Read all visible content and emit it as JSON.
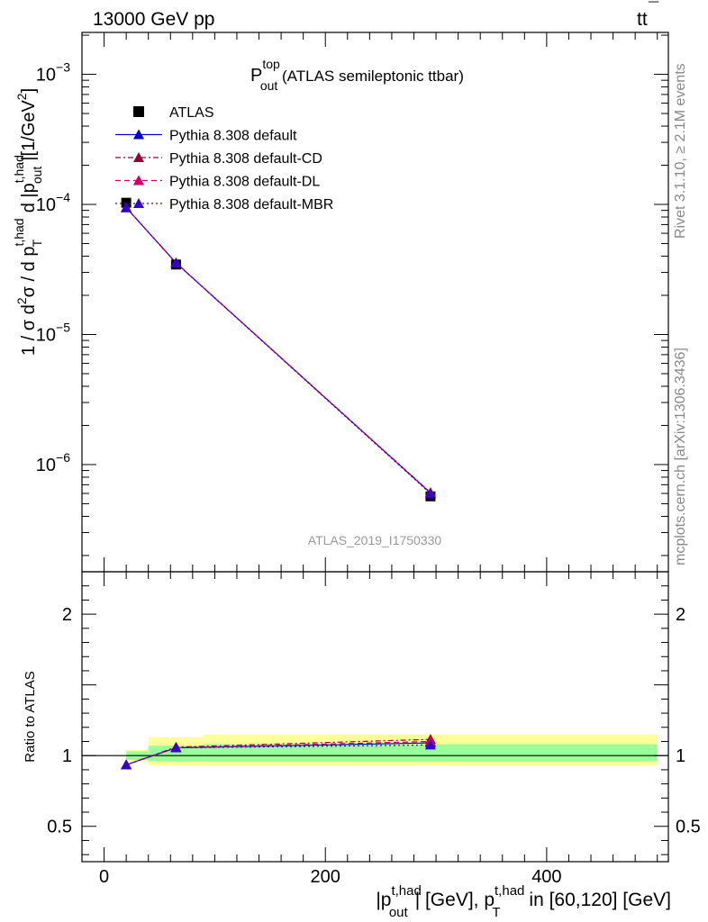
{
  "header": {
    "left": "13000 GeV pp",
    "right_main": "tt",
    "right_bar": "¯"
  },
  "side_labels": {
    "rivet": "Rivet 3.1.10, ≥ 2.1M events",
    "mcplots": "mcplots.cern.ch [arXiv:1306.3436]"
  },
  "analysis_tag": "ATLAS_2019_I1750330",
  "plot_title": {
    "main": "P",
    "sup": "top",
    "sub": "out",
    "rest": " (ATLAS semileptonic ttbar)"
  },
  "y_axis_label": {
    "part1": "1 / σ d",
    "sup2": "2",
    "part2": "σ / d p",
    "sup_t": "t,had",
    "sub_T": "T",
    "part3": " d |p",
    "sup_out": "t,had",
    "sub_out": "out",
    "part4": "|[1/GeV",
    "sup_gev": "2",
    "part5": "]"
  },
  "ratio_y_label": "Ratio to ATLAS",
  "x_axis_label": {
    "p1": "|p",
    "sup1": "t,had",
    "sub1": "out",
    "p2": "| [GeV], p",
    "sup2": "t,had",
    "sub2": "T",
    "p3": " in [60,120] [GeV]"
  },
  "main_y_ticks": [
    {
      "value": 0.001,
      "base": "10",
      "exp": "−3"
    },
    {
      "value": 0.0001,
      "base": "10",
      "exp": "−4"
    },
    {
      "value": 1e-05,
      "base": "10",
      "exp": "−5"
    },
    {
      "value": 1e-06,
      "base": "10",
      "exp": "−6"
    }
  ],
  "ratio_y_ticks": [
    {
      "value": 2,
      "label": "2"
    },
    {
      "value": 1,
      "label": "1"
    },
    {
      "value": 0.5,
      "label": "0.5"
    }
  ],
  "x_ticks": [
    {
      "value": 0,
      "label": "0"
    },
    {
      "value": 200,
      "label": "200"
    },
    {
      "value": 400,
      "label": "400"
    }
  ],
  "legend": [
    {
      "label": "ATLAS",
      "color": "#000000",
      "marker": "square",
      "line": "none"
    },
    {
      "label": "Pythia 8.308 default",
      "color": "#0000cc",
      "marker": "triangle",
      "line": "solid"
    },
    {
      "label": "Pythia 8.308 default-CD",
      "color": "#990033",
      "marker": "triangle",
      "line": "dashdot"
    },
    {
      "label": "Pythia 8.308 default-DL",
      "color": "#cc0066",
      "marker": "triangle",
      "line": "dashed"
    },
    {
      "label": "Pythia 8.308 default-MBR",
      "color": "#3300cc",
      "marker": "triangle",
      "line": "dotted"
    }
  ],
  "colors": {
    "band_outer": "#ffff99",
    "band_inner": "#99ff99"
  },
  "chart_data": {
    "type": "scatter",
    "x_scale": "linear",
    "y_scale": "log",
    "xlim": [
      -20,
      510
    ],
    "ylim": [
      1.5e-07,
      0.0021
    ],
    "ratio_ylim": [
      0.25,
      2.3
    ],
    "data": {
      "name": "ATLAS",
      "x": [
        20,
        65,
        295
      ],
      "y": [
        0.000103,
        3.45e-05,
        5.7e-07
      ],
      "xerr": [
        [
          20,
          40
        ],
        [
          40,
          90
        ],
        [
          90,
          500
        ]
      ],
      "ratio_band_inner": [
        [
          0.97,
          1.03
        ],
        [
          0.96,
          1.07
        ],
        [
          0.96,
          1.08
        ]
      ],
      "ratio_band_outer": [
        [
          0.96,
          1.04
        ],
        [
          0.93,
          1.13
        ],
        [
          0.93,
          1.15
        ]
      ]
    },
    "series": [
      {
        "name": "Pythia 8.308 default",
        "x": [
          20,
          65,
          295
        ],
        "y": [
          9.45e-05,
          3.55e-05,
          6.05e-07
        ],
        "ratio": [
          0.935,
          1.055,
          1.09
        ]
      },
      {
        "name": "Pythia 8.308 default-CD",
        "x": [
          20,
          65,
          295
        ],
        "y": [
          9.45e-05,
          3.55e-05,
          6.1e-07
        ],
        "ratio": [
          0.935,
          1.06,
          1.115
        ]
      },
      {
        "name": "Pythia 8.308 default-DL",
        "x": [
          20,
          65,
          295
        ],
        "y": [
          9.45e-05,
          3.55e-05,
          6.05e-07
        ],
        "ratio": [
          0.935,
          1.055,
          1.1
        ]
      },
      {
        "name": "Pythia 8.308 default-MBR",
        "x": [
          20,
          65,
          295
        ],
        "y": [
          9.45e-05,
          3.55e-05,
          5.98e-07
        ],
        "ratio": [
          0.935,
          1.055,
          1.075
        ]
      }
    ]
  }
}
